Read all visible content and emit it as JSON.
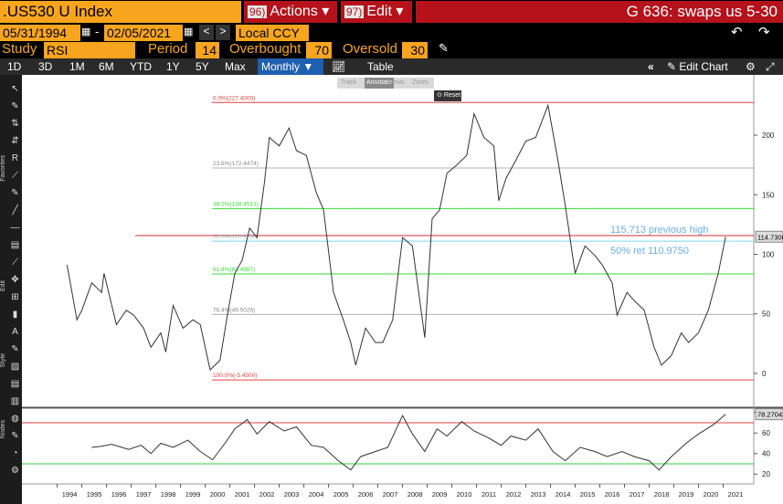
{
  "header": {
    "security": ".US530 U Index",
    "actions_num": "96)",
    "actions": "Actions",
    "edit_num": "97)",
    "edit": "Edit",
    "title": "G 636: swaps us 5-30"
  },
  "dates": {
    "start": "05/31/1994",
    "end": "02/05/2021",
    "currency": "Local CCY"
  },
  "study": {
    "label": "Study",
    "value": "RSI",
    "period_label": "Period",
    "period": 14,
    "overbought_label": "Overbought",
    "overbought": 70,
    "oversold_label": "Oversold",
    "oversold": 30
  },
  "periods": [
    "1D",
    "3D",
    "1M",
    "6M",
    "YTD",
    "1Y",
    "5Y",
    "Max"
  ],
  "frequency": "Monthly",
  "table": "Table",
  "edit_chart": "Edit Chart",
  "chart_tools": [
    "Track",
    "Annotate",
    "News",
    "Zoom"
  ],
  "reset": "Reset",
  "side_labels": [
    "Favorites",
    "Edit",
    "Style",
    "Nodes"
  ],
  "chart_data": [
    {
      "type": "line",
      "color": "#333333",
      "x": [
        1994.4,
        1994.8,
        1995.0,
        1995.4,
        1995.8,
        1995.9,
        1996.4,
        1996.8,
        1997.1,
        1997.5,
        1997.8,
        1998.2,
        1998.4,
        1998.7,
        1999.1,
        1999.5,
        1999.8,
        2000.2,
        2000.6,
        2000.9,
        2001.2,
        2001.5,
        2001.8,
        2002.1,
        2002.4,
        2002.6,
        2003.0,
        2003.4,
        2003.7,
        2004.1,
        2004.5,
        2004.8,
        2005.2,
        2005.6,
        2005.9,
        2006.1,
        2006.5,
        2006.9,
        2007.2,
        2007.6,
        2008.0,
        2008.4,
        2008.7,
        2008.9,
        2009.2,
        2009.5,
        2009.8,
        2010.2,
        2010.6,
        2010.9,
        2011.3,
        2011.7,
        2011.9,
        2012.2,
        2012.6,
        2013.0,
        2013.4,
        2013.9,
        2014.3,
        2014.6,
        2015.0,
        2015.4,
        2015.8,
        2016.1,
        2016.5,
        2016.7,
        2017.1,
        2017.4,
        2017.8,
        2018.2,
        2018.5,
        2018.9,
        2019.3,
        2019.6,
        2020.0,
        2020.4,
        2020.8,
        2021.1
      ],
      "values": [
        91,
        45,
        53,
        76,
        68,
        84,
        41,
        53,
        49,
        38,
        22,
        34,
        18,
        57,
        38,
        45,
        41,
        3,
        11,
        49,
        84,
        95,
        122,
        114,
        160,
        198,
        191,
        206,
        187,
        183,
        152,
        137,
        68,
        45,
        26,
        7,
        38,
        26,
        26,
        45,
        114,
        107,
        61,
        30,
        130,
        137,
        168,
        175,
        183,
        218,
        198,
        191,
        145,
        164,
        179,
        195,
        198,
        225,
        179,
        141,
        84,
        107,
        99,
        91,
        76,
        49,
        68,
        61,
        53,
        22,
        7,
        15,
        34,
        26,
        34,
        53,
        84,
        114.73
      ],
      "last_label": "114.7300",
      "xlim": [
        1992.57,
        2022.24
      ],
      "ylim": [
        -27.6,
        250.6
      ],
      "yticks": [
        0,
        50,
        100,
        150,
        200
      ],
      "levels": [
        {
          "value": 227.4,
          "label": "0.0%(227.4000)",
          "color": "#e04040"
        },
        {
          "value": 172.4474,
          "label": "23.6%(172.4474)",
          "color": "#b0b0b0"
        },
        {
          "value": 138.4513,
          "label": "38.2%(138.4513)",
          "color": "#33dd33"
        },
        {
          "value": 110.975,
          "label": "50.0%(110.9750)",
          "color": "#7fd8ee"
        },
        {
          "value": 83.4987,
          "label": "61.8%(83.4987)",
          "color": "#33dd33"
        },
        {
          "value": 49.5026,
          "label": "76.4%(49.5026)",
          "color": "#b0b0b0"
        },
        {
          "value": -5.45,
          "label": "100.0%(-5.4500)",
          "color": "#e04040"
        }
      ],
      "annotations": [
        {
          "text": "115.713 previous high",
          "value": 115.713,
          "color": "#6aaee6",
          "line_color": "#d03030"
        },
        {
          "text": "50% ret 110.9750",
          "value": 110.975,
          "color": "#6aaee6"
        }
      ]
    },
    {
      "type": "line",
      "color": "#333333",
      "x": [
        1995.4,
        1995.8,
        1996.2,
        1996.9,
        1997.4,
        1997.8,
        1998.2,
        1998.7,
        1999.3,
        1999.8,
        2000.3,
        2000.8,
        2001.2,
        2001.7,
        2002.1,
        2002.6,
        2003.2,
        2003.7,
        2004.3,
        2004.8,
        2005.4,
        2005.9,
        2006.3,
        2006.9,
        2007.4,
        2008.0,
        2008.4,
        2008.9,
        2009.4,
        2009.8,
        2010.4,
        2010.9,
        2011.5,
        2012.0,
        2012.4,
        2013.0,
        2013.5,
        2014.1,
        2014.6,
        2015.2,
        2015.8,
        2016.3,
        2016.9,
        2017.4,
        2018.0,
        2018.4,
        2018.9,
        2019.5,
        2020.0,
        2020.6,
        2021.1
      ],
      "values": [
        46,
        47,
        49,
        44,
        48,
        40,
        50,
        46,
        53,
        42,
        34,
        50,
        64,
        73,
        59,
        71,
        62,
        66,
        48,
        46,
        33,
        24,
        37,
        42,
        46,
        77,
        59,
        42,
        64,
        57,
        71,
        62,
        55,
        48,
        57,
        53,
        64,
        42,
        33,
        46,
        42,
        37,
        42,
        37,
        33,
        24,
        37,
        50,
        59,
        68,
        78.2704
      ],
      "last_label": "78.2704",
      "xlim": [
        1992.57,
        2022.24
      ],
      "ylim": [
        10.4,
        83.3
      ],
      "yticks": [
        20,
        40,
        60,
        80
      ],
      "xticks": [
        1994,
        1995,
        1996,
        1997,
        1998,
        1999,
        2000,
        2001,
        2002,
        2003,
        2004,
        2005,
        2006,
        2007,
        2008,
        2009,
        2010,
        2011,
        2012,
        2013,
        2014,
        2015,
        2016,
        2017,
        2018,
        2019,
        2020,
        2021
      ]
    }
  ]
}
